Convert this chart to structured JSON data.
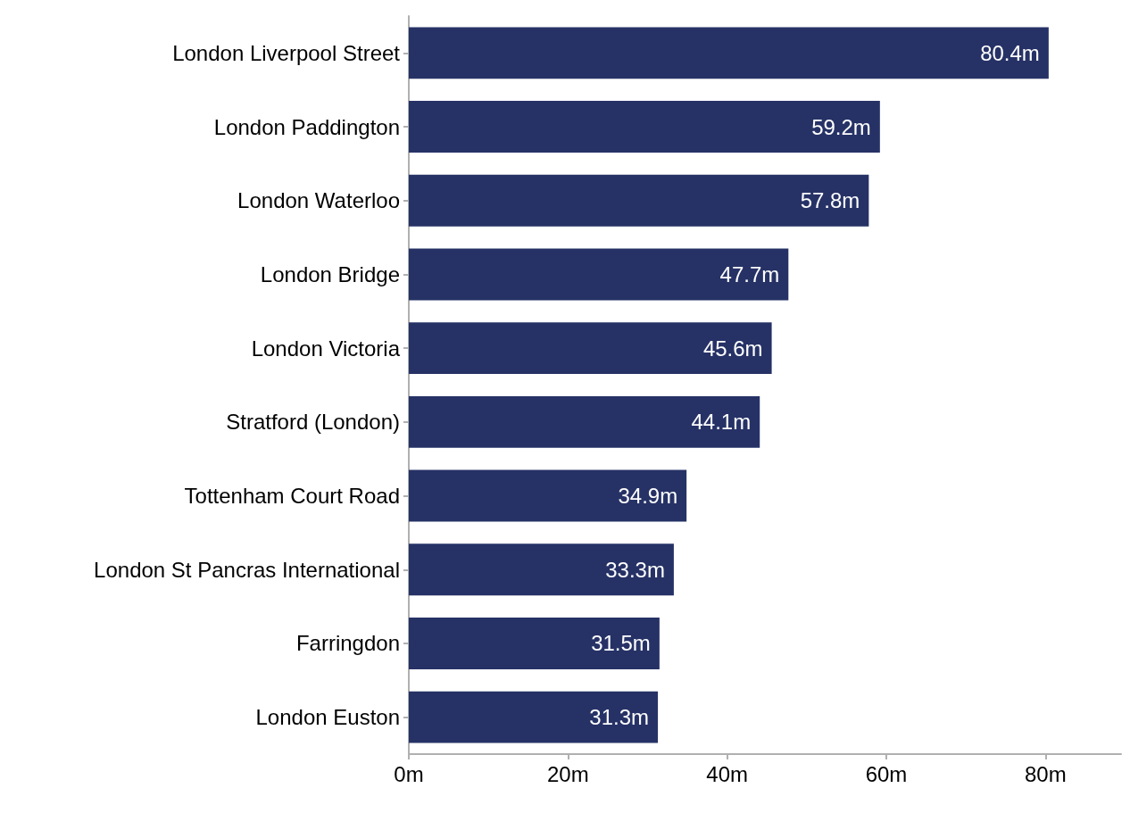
{
  "chart_data": {
    "type": "bar",
    "orientation": "horizontal",
    "categories": [
      "London Liverpool Street",
      "London Paddington",
      "London Waterloo",
      "London Bridge",
      "London Victoria",
      "Stratford (London)",
      "Tottenham Court Road",
      "London St Pancras International",
      "Farringdon",
      "London Euston"
    ],
    "values": [
      80.4,
      59.2,
      57.8,
      47.7,
      45.6,
      44.1,
      34.9,
      33.3,
      31.5,
      31.3
    ],
    "value_labels": [
      "80.4m",
      "59.2m",
      "57.8m",
      "47.7m",
      "45.6m",
      "44.1m",
      "34.9m",
      "33.3m",
      "31.5m",
      "31.3m"
    ],
    "color": "#263266",
    "xlim": [
      0,
      89.5
    ],
    "xticks": [
      {
        "value": 0,
        "label": "0m"
      },
      {
        "value": 20,
        "label": "20m"
      },
      {
        "value": 40,
        "label": "40m"
      },
      {
        "value": 60,
        "label": "60m"
      },
      {
        "value": 80,
        "label": "80m"
      }
    ],
    "grid": false
  }
}
